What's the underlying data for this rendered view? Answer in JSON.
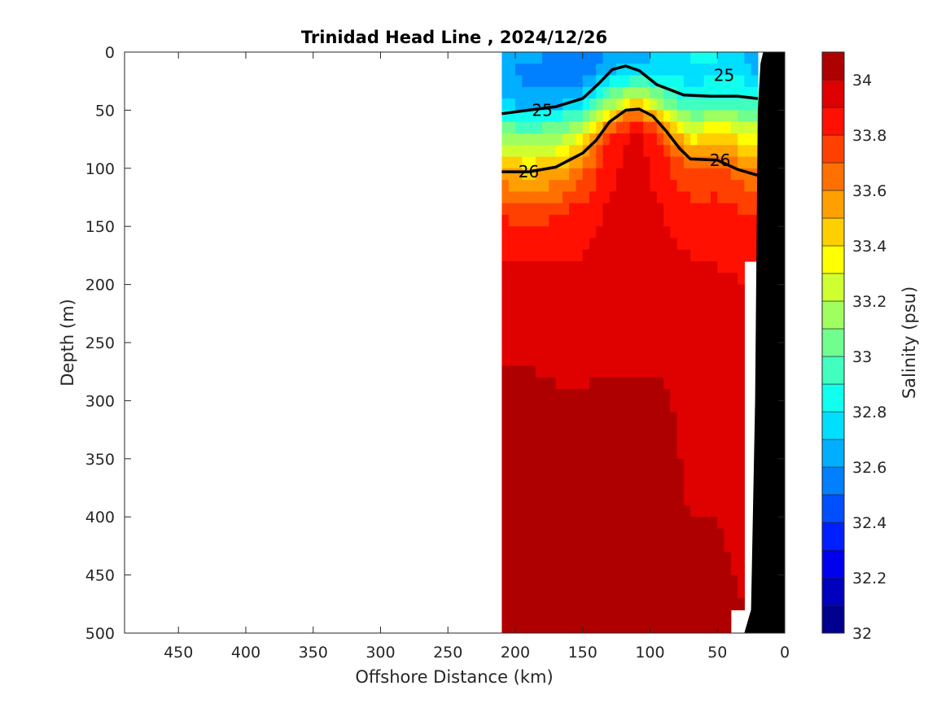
{
  "chart_data": {
    "type": "heatmap",
    "title": "Trinidad Head Line , 2024/12/26",
    "xlabel": "Offshore Distance (km)",
    "ylabel": "Depth (m)",
    "xlim": [
      490,
      0
    ],
    "ylim": [
      500,
      0
    ],
    "x_reversed": true,
    "y_reversed": true,
    "x_ticks": [
      450,
      400,
      350,
      300,
      250,
      200,
      150,
      100,
      50,
      0
    ],
    "y_ticks": [
      0,
      50,
      100,
      150,
      200,
      250,
      300,
      350,
      400,
      450,
      500
    ],
    "colorbar": {
      "label": "Salinity (psu)",
      "range": [
        32,
        34.1
      ],
      "levels": [
        32.0,
        32.1,
        32.2,
        32.3,
        32.4,
        32.5,
        32.6,
        32.7,
        32.8,
        32.9,
        33.0,
        33.1,
        33.2,
        33.3,
        33.4,
        33.5,
        33.6,
        33.7,
        33.8,
        33.9,
        34.0
      ],
      "colors": [
        "#00008f",
        "#0000bf",
        "#0000ef",
        "#001fff",
        "#004fff",
        "#007fff",
        "#00afff",
        "#00dfff",
        "#10ffef",
        "#40ffbf",
        "#70ff8f",
        "#9fff60",
        "#cfff30",
        "#ffff00",
        "#ffcf00",
        "#ff9f00",
        "#ff7000",
        "#ff4000",
        "#ff1000",
        "#df0000",
        "#af0000"
      ],
      "ticks": [
        32,
        32.2,
        32.4,
        32.6,
        32.8,
        33,
        33.2,
        33.4,
        33.6,
        33.8,
        34
      ]
    },
    "sampled_range_km": [
      210,
      20
    ],
    "stations_km": [
      210,
      190,
      170,
      150,
      130,
      110,
      90,
      70,
      50,
      30,
      20
    ],
    "salinity_profiles": [
      {
        "station_km": 210,
        "depths": [
          0,
          20,
          45,
          70,
          100,
          140,
          200,
          300,
          500
        ],
        "salinity": [
          32.68,
          32.62,
          32.72,
          33.1,
          33.5,
          33.8,
          33.95,
          34.02,
          34.04
        ]
      },
      {
        "station_km": 190,
        "depths": [
          0,
          20,
          45,
          70,
          100,
          140,
          200,
          300,
          500
        ],
        "salinity": [
          32.62,
          32.56,
          32.68,
          33.05,
          33.45,
          33.75,
          33.95,
          34.02,
          34.04
        ]
      },
      {
        "station_km": 170,
        "depths": [
          0,
          20,
          45,
          70,
          100,
          140,
          200,
          300,
          500
        ],
        "salinity": [
          32.62,
          32.52,
          32.68,
          33.1,
          33.5,
          33.8,
          33.94,
          34.01,
          34.04
        ]
      },
      {
        "station_km": 150,
        "depths": [
          0,
          20,
          45,
          70,
          100,
          140,
          200,
          300,
          500
        ],
        "salinity": [
          32.58,
          32.52,
          32.78,
          33.3,
          33.65,
          33.85,
          33.94,
          34.01,
          34.04
        ]
      },
      {
        "station_km": 130,
        "depths": [
          0,
          20,
          45,
          60,
          80,
          140,
          200,
          300,
          500
        ],
        "salinity": [
          32.58,
          32.72,
          33.15,
          33.6,
          33.85,
          33.92,
          33.95,
          34.01,
          34.04
        ]
      },
      {
        "station_km": 110,
        "depths": [
          0,
          20,
          45,
          60,
          80,
          140,
          200,
          300,
          500
        ],
        "salinity": [
          32.62,
          32.82,
          33.45,
          33.85,
          33.95,
          33.96,
          33.97,
          34.01,
          34.03
        ]
      },
      {
        "station_km": 90,
        "depths": [
          0,
          20,
          45,
          60,
          80,
          140,
          200,
          300,
          500
        ],
        "salinity": [
          32.72,
          32.78,
          33.1,
          33.55,
          33.8,
          33.9,
          33.95,
          34.01,
          34.03
        ]
      },
      {
        "station_km": 70,
        "depths": [
          0,
          20,
          45,
          70,
          100,
          140,
          200,
          300,
          500
        ],
        "salinity": [
          32.82,
          32.75,
          32.9,
          33.3,
          33.7,
          33.85,
          33.93,
          33.98,
          34.02
        ]
      },
      {
        "station_km": 50,
        "depths": [
          0,
          20,
          45,
          70,
          100,
          140,
          200,
          300,
          500
        ],
        "salinity": [
          32.82,
          32.78,
          32.95,
          33.45,
          33.72,
          33.85,
          33.92,
          33.98,
          34.02
        ]
      },
      {
        "station_km": 30,
        "depths": [
          0,
          20,
          45,
          70,
          100,
          140,
          200,
          300,
          480
        ],
        "salinity": [
          32.7,
          32.76,
          32.95,
          33.3,
          33.62,
          33.82,
          33.9,
          33.97,
          34.0
        ]
      },
      {
        "station_km": 20,
        "depths": [
          0,
          20,
          45,
          70,
          100,
          140,
          180
        ],
        "salinity": [
          32.6,
          32.7,
          32.95,
          33.3,
          33.6,
          33.8,
          33.88
        ]
      }
    ],
    "density_contours": [
      {
        "level": 25,
        "label": "25",
        "emphasized": true,
        "points": [
          [
            210,
            53
          ],
          [
            190,
            50
          ],
          [
            170,
            47
          ],
          [
            150,
            40
          ],
          [
            138,
            27
          ],
          [
            128,
            15
          ],
          [
            118,
            12
          ],
          [
            108,
            16
          ],
          [
            95,
            28
          ],
          [
            75,
            37
          ],
          [
            55,
            38
          ],
          [
            35,
            38
          ],
          [
            20,
            40
          ]
        ]
      },
      {
        "level": 26,
        "label": "26",
        "emphasized": true,
        "points": [
          [
            210,
            103
          ],
          [
            190,
            103
          ],
          [
            170,
            99
          ],
          [
            150,
            87
          ],
          [
            140,
            76
          ],
          [
            130,
            60
          ],
          [
            118,
            50
          ],
          [
            108,
            49
          ],
          [
            98,
            55
          ],
          [
            88,
            68
          ],
          [
            78,
            83
          ],
          [
            70,
            92
          ],
          [
            50,
            93
          ],
          [
            35,
            101
          ],
          [
            20,
            106
          ]
        ]
      }
    ],
    "contour_labels": [
      {
        "text": "25",
        "x": 180,
        "y": 50
      },
      {
        "text": "25",
        "x": 45,
        "y": 20
      },
      {
        "text": "26",
        "x": 190,
        "y": 103
      },
      {
        "text": "26",
        "x": 48,
        "y": 93
      }
    ],
    "bottom_profile": [
      [
        30,
        500
      ],
      [
        25,
        480
      ],
      [
        22,
        300
      ],
      [
        20,
        50
      ],
      [
        18,
        10
      ],
      [
        16,
        0
      ]
    ]
  }
}
